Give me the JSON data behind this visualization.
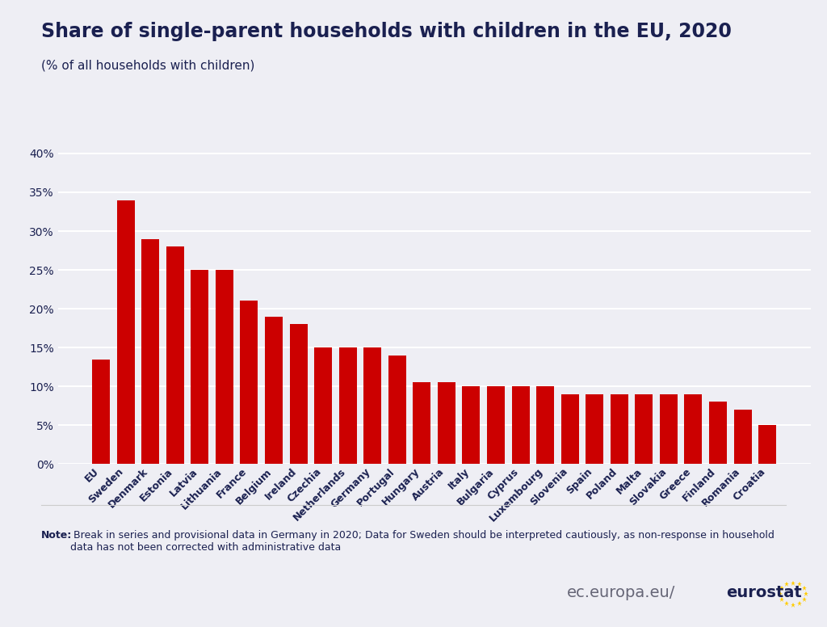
{
  "title": "Share of single-parent households with children in the EU, 2020",
  "subtitle": "(% of all households with children)",
  "bar_color": "#CC0000",
  "background_color": "#EEEEF4",
  "plot_bg_color": "#EEEEF4",
  "title_color": "#1a2050",
  "subtitle_color": "#1a2050",
  "categories": [
    "EU",
    "Sweden",
    "Denmark",
    "Estonia",
    "Latvia",
    "Lithuania",
    "France",
    "Belgium",
    "Ireland",
    "Czechia",
    "Netherlands",
    "Germany",
    "Portugal",
    "Hungary",
    "Austria",
    "Italy",
    "Bulgaria",
    "Cyprus",
    "Luxembourg",
    "Slovenia",
    "Spain",
    "Poland",
    "Malta",
    "Slovakia",
    "Greece",
    "Finland",
    "Romania",
    "Croatia"
  ],
  "values": [
    13.5,
    34.0,
    29.0,
    28.0,
    25.0,
    25.0,
    21.0,
    19.0,
    18.0,
    15.0,
    15.0,
    15.0,
    14.0,
    10.5,
    10.5,
    10.0,
    10.0,
    10.0,
    10.0,
    9.0,
    9.0,
    9.0,
    9.0,
    9.0,
    9.0,
    8.0,
    7.0,
    5.0
  ],
  "ylim": [
    0,
    42
  ],
  "yticks": [
    0,
    5,
    10,
    15,
    20,
    25,
    30,
    35,
    40
  ],
  "note_bold": "Note:",
  "note_normal": " Break in series and provisional data in Germany in 2020; Data for Sweden should be interpreted cautiously, as non-response in household\ndata has not been corrected with administrative data",
  "watermark_normal": "ec.europa.eu/",
  "watermark_bold": "eurostat"
}
